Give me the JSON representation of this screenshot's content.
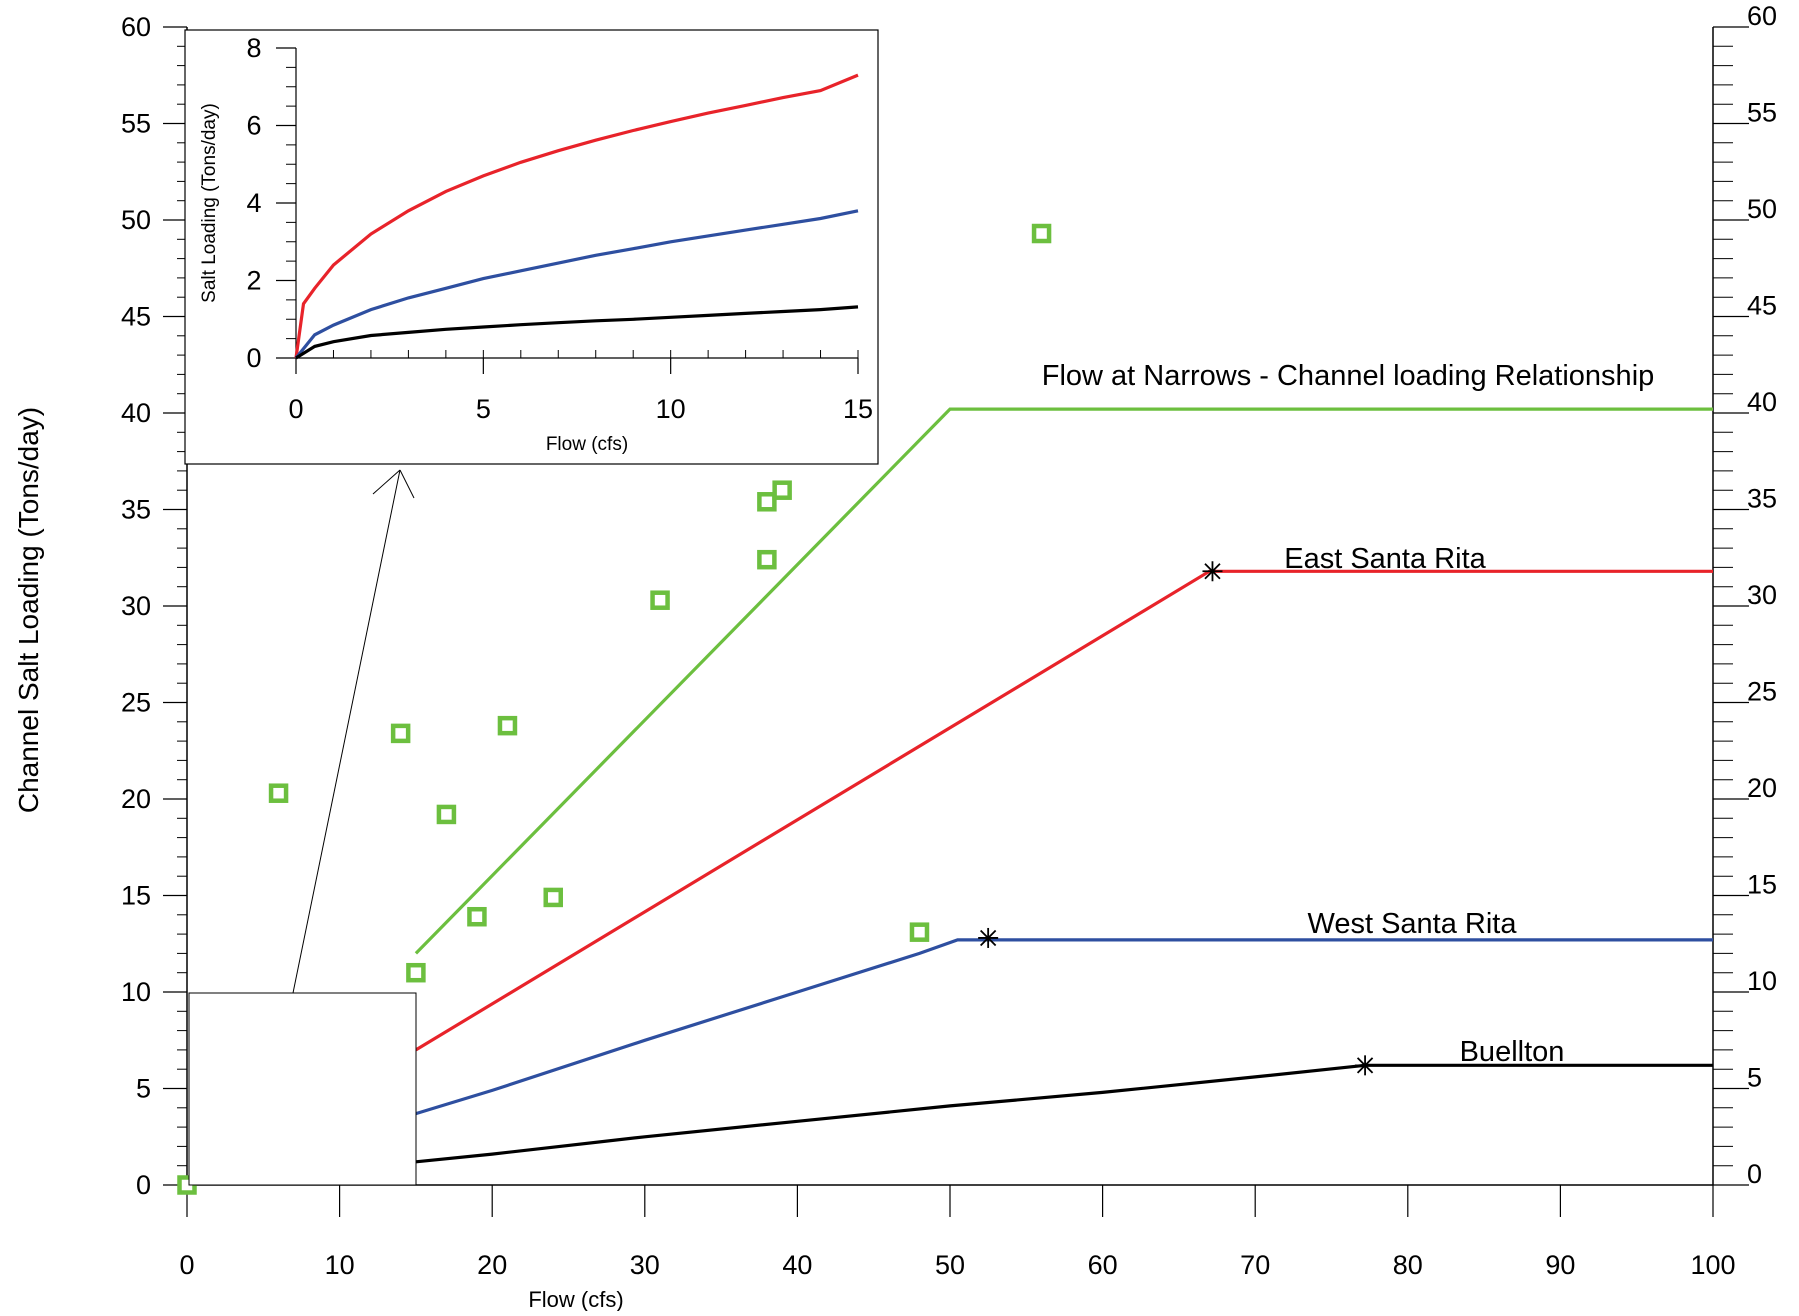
{
  "chart_data": {
    "type": "line",
    "xlabel": "Flow (cfs)",
    "ylabel": "Channel Salt Loading (Tons/day)",
    "xlim": [
      0,
      100
    ],
    "ylim": [
      0,
      60
    ],
    "x_ticks": [
      "0",
      "10",
      "20",
      "30",
      "40",
      "50",
      "60",
      "70",
      "80",
      "90",
      "100"
    ],
    "y_ticks": [
      "0",
      "5",
      "10",
      "15",
      "20",
      "25",
      "30",
      "35",
      "40",
      "45",
      "50",
      "55",
      "60"
    ],
    "y2_ticks": [
      "0",
      "5",
      "10",
      "15",
      "20",
      "25",
      "30",
      "35",
      "40",
      "45",
      "50",
      "55",
      "60"
    ],
    "grid": false,
    "colors": {
      "narrows": "#6cbf3f",
      "east": "#e8232a",
      "west": "#2e4fa0",
      "buellton": "#000000",
      "observed": "#6cbf3f"
    },
    "series": [
      {
        "name": "Flow at Narrows - Channel loading Relationship",
        "color_key": "narrows",
        "points": [
          [
            15,
            12
          ],
          [
            50,
            40.2
          ],
          [
            100,
            40.2
          ]
        ]
      },
      {
        "name": "East Santa Rita",
        "color_key": "east",
        "points": [
          [
            15,
            7
          ],
          [
            67,
            31.8
          ],
          [
            100,
            31.8
          ]
        ],
        "marker_point": [
          67.2,
          31.8
        ]
      },
      {
        "name": "West Santa Rita",
        "color_key": "west",
        "points": [
          [
            15,
            3.7
          ],
          [
            20,
            4.9
          ],
          [
            30,
            7.5
          ],
          [
            40,
            10
          ],
          [
            48,
            12
          ],
          [
            50.5,
            12.7
          ],
          [
            100,
            12.7
          ]
        ],
        "marker_point": [
          52.5,
          12.8
        ]
      },
      {
        "name": "Buellton",
        "color_key": "buellton",
        "points": [
          [
            15,
            1.2
          ],
          [
            20,
            1.6
          ],
          [
            30,
            2.5
          ],
          [
            40,
            3.3
          ],
          [
            50,
            4.1
          ],
          [
            60,
            4.8
          ],
          [
            70,
            5.6
          ],
          [
            77.2,
            6.2
          ],
          [
            100,
            6.2
          ]
        ],
        "marker_point": [
          77.2,
          6.2
        ]
      }
    ],
    "observed_points": [
      [
        0,
        0
      ],
      [
        6,
        20.3
      ],
      [
        14,
        23.4
      ],
      [
        15,
        11
      ],
      [
        17,
        19.2
      ],
      [
        19,
        13.9
      ],
      [
        21,
        23.8
      ],
      [
        24,
        14.9
      ],
      [
        31,
        30.3
      ],
      [
        38,
        35.4
      ],
      [
        38,
        32.4
      ],
      [
        39,
        36
      ],
      [
        48,
        13.1
      ],
      [
        56,
        49.3
      ]
    ],
    "inset": {
      "xlabel": "Flow (cfs)",
      "ylabel": "Salt Loading (Tons/day)",
      "xlim": [
        0,
        15
      ],
      "ylim": [
        0,
        8
      ],
      "x_ticks": [
        "0",
        "5",
        "10",
        "15"
      ],
      "y_ticks": [
        "0",
        "2",
        "4",
        "6",
        "8"
      ],
      "series": [
        {
          "color_key": "east",
          "points": [
            [
              0,
              0
            ],
            [
              0.2,
              1.4
            ],
            [
              0.5,
              1.8
            ],
            [
              1,
              2.4
            ],
            [
              2,
              3.2
            ],
            [
              3,
              3.8
            ],
            [
              4,
              4.3
            ],
            [
              5,
              4.7
            ],
            [
              6,
              5.05
            ],
            [
              7,
              5.35
            ],
            [
              8,
              5.62
            ],
            [
              9,
              5.87
            ],
            [
              10,
              6.1
            ],
            [
              11,
              6.32
            ],
            [
              12,
              6.52
            ],
            [
              13,
              6.72
            ],
            [
              14,
              6.9
            ],
            [
              15,
              7.3
            ]
          ]
        },
        {
          "color_key": "west",
          "points": [
            [
              0,
              0
            ],
            [
              0.5,
              0.6
            ],
            [
              1,
              0.85
            ],
            [
              2,
              1.25
            ],
            [
              3,
              1.55
            ],
            [
              4,
              1.8
            ],
            [
              5,
              2.05
            ],
            [
              6,
              2.25
            ],
            [
              7,
              2.45
            ],
            [
              8,
              2.65
            ],
            [
              9,
              2.82
            ],
            [
              10,
              3.0
            ],
            [
              11,
              3.15
            ],
            [
              12,
              3.3
            ],
            [
              13,
              3.45
            ],
            [
              14,
              3.6
            ],
            [
              15,
              3.8
            ]
          ]
        },
        {
          "color_key": "buellton",
          "points": [
            [
              0,
              0
            ],
            [
              0.5,
              0.3
            ],
            [
              1,
              0.42
            ],
            [
              2,
              0.58
            ],
            [
              3,
              0.66
            ],
            [
              4,
              0.74
            ],
            [
              5,
              0.8
            ],
            [
              6,
              0.86
            ],
            [
              7,
              0.91
            ],
            [
              8,
              0.96
            ],
            [
              9,
              1.0
            ],
            [
              10,
              1.05
            ],
            [
              11,
              1.1
            ],
            [
              12,
              1.15
            ],
            [
              13,
              1.2
            ],
            [
              14,
              1.25
            ],
            [
              15,
              1.32
            ]
          ]
        }
      ]
    }
  }
}
